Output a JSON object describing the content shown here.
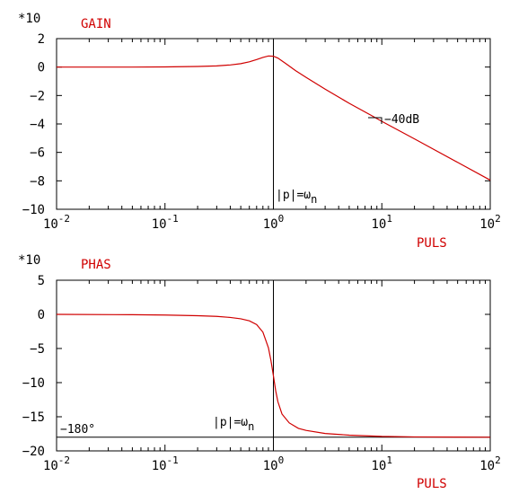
{
  "chart_data": [
    {
      "type": "line",
      "title": "GAIN",
      "scale_label": "*10",
      "xlabel": "PULS",
      "xscale": "log",
      "xlim": [
        0.01,
        100
      ],
      "ylim": [
        -10,
        2
      ],
      "x_ticks": [
        {
          "base": "10",
          "exp": "-2"
        },
        {
          "base": "10",
          "exp": "-1"
        },
        {
          "base": "10",
          "exp": "0"
        },
        {
          "base": "10",
          "exp": "1"
        },
        {
          "base": "10",
          "exp": "2"
        }
      ],
      "y_ticks": [
        "2",
        "0",
        "−2",
        "−4",
        "−6",
        "−8",
        "−10"
      ],
      "series": [
        {
          "color": "#d00000",
          "x": [
            0.01,
            0.05,
            0.1,
            0.2,
            0.3,
            0.4,
            0.5,
            0.6,
            0.7,
            0.8,
            0.9,
            1.0,
            1.1,
            1.3,
            1.6,
            2,
            3,
            5,
            8,
            10,
            20,
            50,
            100
          ],
          "y": [
            0,
            0,
            0.01,
            0.04,
            0.08,
            0.15,
            0.24,
            0.37,
            0.53,
            0.68,
            0.78,
            0.76,
            0.63,
            0.25,
            -0.25,
            -0.72,
            -1.55,
            -2.55,
            -3.4,
            -3.82,
            -5.05,
            -6.7,
            -7.95
          ]
        }
      ],
      "annotations": [
        {
          "text": "|p|=ω",
          "sub": "n",
          "x": 1.0
        },
        {
          "text": "−40dB"
        }
      ],
      "vertical_line_x": 1.0
    },
    {
      "type": "line",
      "title": "PHAS",
      "scale_label": "*10",
      "xlabel": "PULS",
      "xscale": "log",
      "xlim": [
        0.01,
        100
      ],
      "ylim": [
        -20,
        5
      ],
      "x_ticks": [
        {
          "base": "10",
          "exp": "-2"
        },
        {
          "base": "10",
          "exp": "-1"
        },
        {
          "base": "10",
          "exp": "0"
        },
        {
          "base": "10",
          "exp": "1"
        },
        {
          "base": "10",
          "exp": "2"
        }
      ],
      "y_ticks": [
        "5",
        "0",
        "−5",
        "−10",
        "−15",
        "−20"
      ],
      "series": [
        {
          "color": "#d00000",
          "x": [
            0.01,
            0.05,
            0.1,
            0.2,
            0.3,
            0.4,
            0.5,
            0.6,
            0.7,
            0.8,
            0.9,
            0.95,
            1.0,
            1.05,
            1.1,
            1.2,
            1.4,
            1.7,
            2,
            3,
            5,
            10,
            20,
            50,
            100
          ],
          "y": [
            0,
            -0.05,
            -0.1,
            -0.2,
            -0.3,
            -0.45,
            -0.65,
            -0.95,
            -1.5,
            -2.6,
            -4.9,
            -6.8,
            -9.0,
            -11.2,
            -12.8,
            -14.6,
            -15.9,
            -16.7,
            -17.0,
            -17.45,
            -17.7,
            -17.88,
            -17.95,
            -17.98,
            -18.0
          ]
        }
      ],
      "annotations": [
        {
          "text": "|p|=ω",
          "sub": "n",
          "x": 1.0
        },
        {
          "text": "−180°"
        }
      ],
      "vertical_line_x": 1.0,
      "horizontal_line_y": -18
    }
  ]
}
